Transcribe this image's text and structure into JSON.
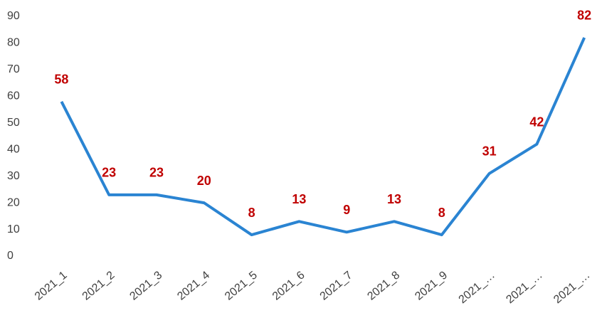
{
  "chart_data": {
    "type": "line",
    "categories": [
      "2021_1",
      "2021_2",
      "2021_3",
      "2021_4",
      "2021_5",
      "2021_6",
      "2021_7",
      "2021_8",
      "2021_9",
      "2021_…",
      "2021_…",
      "2021_…"
    ],
    "series": [
      {
        "color": "#2a84d2",
        "values": [
          58,
          23,
          23,
          20,
          8,
          13,
          9,
          13,
          8,
          31,
          42,
          82
        ]
      }
    ],
    "label_color": "#c00000",
    "ylim": [
      0,
      90
    ],
    "yticks": [
      0,
      10,
      20,
      30,
      40,
      50,
      60,
      70,
      80,
      90
    ],
    "grid": false
  }
}
